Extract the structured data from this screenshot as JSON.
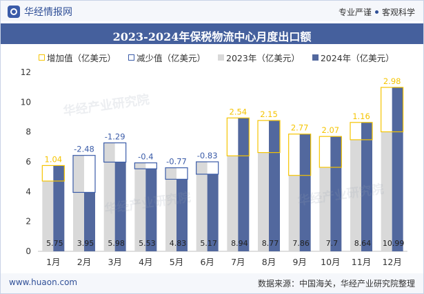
{
  "header": {
    "brand": "华经情报网",
    "slogan_left": "专业严谨",
    "slogan_right": "客观科学"
  },
  "title": "2023-2024年保税物流中心月度出口额",
  "legend": {
    "increase": "增加值（亿美元）",
    "decrease": "减少值（亿美元）",
    "y2023": "2023年（亿美元）",
    "y2024": "2024年（亿美元）"
  },
  "colors": {
    "bar2023": "#d9d9d9",
    "bar2024": "#52689e",
    "increase": "#f5c400",
    "decrease": "#3a5ba8",
    "increase_label": "#f5c400",
    "decrease_label": "#3a5ba8",
    "title_bg": "#45609d"
  },
  "watermark": "华经产业研究院",
  "footer": {
    "url": "www.huaon.com",
    "source": "数据来源：中国海关，华经产业研究院整理"
  },
  "chart_data": {
    "type": "bar",
    "categories": [
      "1月",
      "2月",
      "3月",
      "4月",
      "5月",
      "6月",
      "7月",
      "8月",
      "9月",
      "10月",
      "11月",
      "12月"
    ],
    "ylim": [
      0,
      12
    ],
    "yticks": [
      0,
      2,
      4,
      6,
      8,
      10,
      12
    ],
    "series": [
      {
        "name": "2023年（亿美元）",
        "values": [
          4.71,
          6.43,
          7.27,
          5.93,
          5.6,
          6.0,
          6.4,
          6.62,
          5.09,
          5.63,
          7.48,
          8.01
        ]
      },
      {
        "name": "2024年（亿美元）",
        "values": [
          5.75,
          3.95,
          5.98,
          5.53,
          4.83,
          5.17,
          8.94,
          8.77,
          7.86,
          7.7,
          8.64,
          10.99
        ]
      }
    ],
    "changes": [
      "1.04",
      "-2.48",
      "-1.29",
      "-0.4",
      "-0.77",
      "-0.83",
      "2.54",
      "2.15",
      "2.77",
      "2.07",
      "1.16",
      "2.98"
    ],
    "value_labels_2024": [
      "5.75",
      "3.95",
      "5.98",
      "5.53",
      "4.83",
      "5.17",
      "8.94",
      "8.77",
      "7.86",
      "7.7",
      "8.64",
      "10.99"
    ]
  }
}
